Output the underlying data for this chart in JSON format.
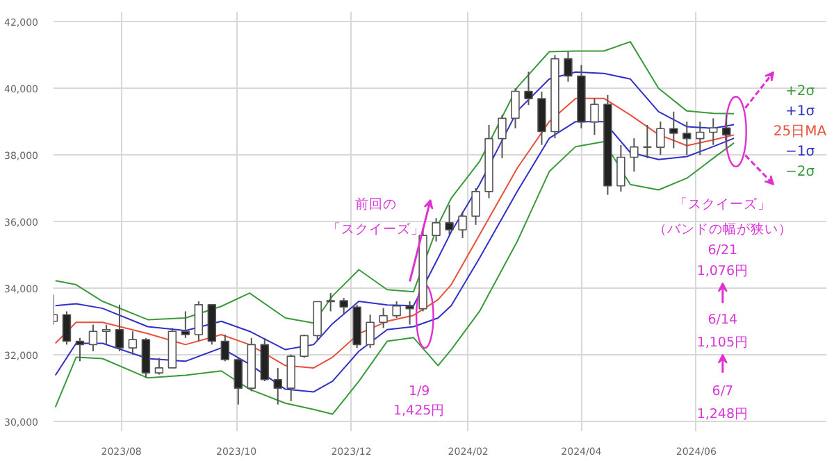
{
  "chart_data": {
    "type": "candlestick",
    "x": [
      "2023-06-26",
      "2023-07-03",
      "2023-07-10",
      "2023-07-17",
      "2023-07-24",
      "2023-07-31",
      "2023-08-07",
      "2023-08-14",
      "2023-08-21",
      "2023-08-28",
      "2023-09-04",
      "2023-09-11",
      "2023-09-18",
      "2023-09-25",
      "2023-10-02",
      "2023-10-09",
      "2023-10-16",
      "2023-10-23",
      "2023-10-30",
      "2023-11-06",
      "2023-11-13",
      "2023-11-20",
      "2023-11-27",
      "2023-12-04",
      "2023-12-11",
      "2023-12-18",
      "2023-12-25",
      "2024-01-01",
      "2024-01-08",
      "2024-01-15",
      "2024-01-22",
      "2024-01-29",
      "2024-02-05",
      "2024-02-12",
      "2024-02-19",
      "2024-02-26",
      "2024-03-04",
      "2024-03-11",
      "2024-03-18",
      "2024-03-25",
      "2024-04-01",
      "2024-04-08",
      "2024-04-15",
      "2024-04-22",
      "2024-04-29",
      "2024-05-06",
      "2024-05-13",
      "2024-05-20",
      "2024-05-27",
      "2024-06-03",
      "2024-06-10",
      "2024-06-17"
    ],
    "ohlc": [
      [
        33000,
        33800,
        32900,
        33200
      ],
      [
        33200,
        33300,
        32300,
        32400
      ],
      [
        32400,
        32500,
        31800,
        32300
      ],
      [
        32300,
        32900,
        32100,
        32700
      ],
      [
        32700,
        32900,
        32300,
        32750
      ],
      [
        32750,
        33500,
        32100,
        32200
      ],
      [
        32200,
        32700,
        32000,
        32450
      ],
      [
        32450,
        32500,
        31300,
        31450
      ],
      [
        31450,
        31900,
        31400,
        31600
      ],
      [
        31600,
        32800,
        31600,
        32700
      ],
      [
        32700,
        33300,
        32500,
        32600
      ],
      [
        32600,
        33600,
        32400,
        33500
      ],
      [
        33500,
        33500,
        32300,
        32400
      ],
      [
        32400,
        32600,
        31800,
        31850
      ],
      [
        31850,
        31900,
        30500,
        30990
      ],
      [
        30990,
        32500,
        30900,
        32300
      ],
      [
        32300,
        32500,
        31200,
        31250
      ],
      [
        31250,
        31600,
        30500,
        30990
      ],
      [
        30990,
        32000,
        30600,
        31950
      ],
      [
        31950,
        32600,
        31900,
        32570
      ],
      [
        32570,
        33600,
        32400,
        33590
      ],
      [
        33590,
        33850,
        33300,
        33620
      ],
      [
        33620,
        33700,
        33200,
        33430
      ],
      [
        33430,
        33500,
        32200,
        32300
      ],
      [
        32300,
        33200,
        32200,
        32970
      ],
      [
        32970,
        33400,
        32800,
        33170
      ],
      [
        33170,
        33600,
        33100,
        33460
      ],
      [
        33460,
        33600,
        32900,
        33380
      ],
      [
        33380,
        35800,
        33300,
        35580
      ],
      [
        35580,
        36100,
        35400,
        35960
      ],
      [
        35960,
        36500,
        35600,
        35750
      ],
      [
        35750,
        36300,
        35500,
        36160
      ],
      [
        36160,
        37000,
        35900,
        36900
      ],
      [
        36900,
        38900,
        36700,
        38490
      ],
      [
        38490,
        39200,
        37900,
        39100
      ],
      [
        39100,
        40000,
        38800,
        39910
      ],
      [
        39910,
        40500,
        39500,
        39690
      ],
      [
        39690,
        39900,
        38300,
        38700
      ],
      [
        38700,
        41000,
        38500,
        40890
      ],
      [
        40890,
        41100,
        40200,
        40370
      ],
      [
        40370,
        40700,
        38800,
        38990
      ],
      [
        38990,
        39700,
        38600,
        39520
      ],
      [
        39520,
        39800,
        36800,
        37070
      ],
      [
        37070,
        38300,
        36900,
        37930
      ],
      [
        37930,
        38500,
        37500,
        38240
      ],
      [
        38240,
        38900,
        37900,
        38230
      ],
      [
        38230,
        39000,
        38000,
        38790
      ],
      [
        38790,
        39300,
        38200,
        38650
      ],
      [
        38650,
        39000,
        38000,
        38490
      ],
      [
        38490,
        39000,
        38000,
        38680
      ],
      [
        38680,
        39100,
        38300,
        38810
      ],
      [
        38810,
        39200,
        38200,
        38600
      ]
    ],
    "series": [
      {
        "name": "+2σ",
        "type": "line",
        "color": "#3a9a3a",
        "x": [
          "2023-06-27",
          "2023-07-08",
          "2023-07-22",
          "2023-08-15",
          "2023-09-04",
          "2023-09-23",
          "2023-10-08",
          "2023-10-27",
          "2023-11-11",
          "2023-11-21",
          "2023-12-05",
          "2023-12-20",
          "2024-01-03",
          "2024-01-16",
          "2024-01-23",
          "2024-02-07",
          "2024-02-27",
          "2024-03-15",
          "2024-03-29",
          "2024-04-13",
          "2024-04-27",
          "2024-05-12",
          "2024-05-27",
          "2024-06-10",
          "2024-06-21"
        ],
        "values": [
          34220,
          34100,
          33600,
          33050,
          33100,
          33450,
          33850,
          33100,
          32950,
          33760,
          34550,
          33950,
          33890,
          35900,
          36700,
          37800,
          40030,
          41100,
          41120,
          41120,
          41400,
          40000,
          39320,
          39250,
          39240
        ]
      },
      {
        "name": "+1σ",
        "type": "line",
        "color": "#3030c8",
        "x": [
          "2023-06-27",
          "2023-07-08",
          "2023-07-22",
          "2023-08-15",
          "2023-09-04",
          "2023-09-23",
          "2023-10-08",
          "2023-10-27",
          "2023-11-11",
          "2023-11-21",
          "2023-12-05",
          "2023-12-20",
          "2024-01-03",
          "2024-01-16",
          "2024-01-23",
          "2024-02-07",
          "2024-02-27",
          "2024-03-15",
          "2024-03-29",
          "2024-04-13",
          "2024-04-27",
          "2024-05-12",
          "2024-05-27",
          "2024-06-10",
          "2024-06-21"
        ],
        "values": [
          33470,
          33530,
          33390,
          32840,
          32720,
          33000,
          32700,
          32150,
          32300,
          32930,
          33600,
          33490,
          33470,
          34900,
          35690,
          37110,
          39320,
          40280,
          40490,
          40450,
          40280,
          39300,
          38850,
          38800,
          38910
        ]
      },
      {
        "name": "25日MA",
        "type": "line",
        "color": "#e8503a",
        "x": [
          "2023-06-27",
          "2023-07-08",
          "2023-07-22",
          "2023-08-15",
          "2023-09-04",
          "2023-09-23",
          "2023-10-08",
          "2023-10-27",
          "2023-11-11",
          "2023-11-21",
          "2023-12-05",
          "2023-12-20",
          "2024-01-03",
          "2024-01-16",
          "2024-01-23",
          "2024-02-07",
          "2024-02-27",
          "2024-03-15",
          "2024-03-29",
          "2024-04-13",
          "2024-04-27",
          "2024-05-12",
          "2024-05-27",
          "2024-06-10",
          "2024-06-21"
        ],
        "values": [
          32340,
          32970,
          32970,
          32630,
          32300,
          32600,
          32300,
          31670,
          31600,
          31920,
          32630,
          33000,
          33180,
          33650,
          34100,
          35600,
          37600,
          39000,
          39700,
          39700,
          39200,
          38610,
          38280,
          38450,
          38600
        ]
      },
      {
        "name": "−1σ",
        "type": "line",
        "color": "#3030c8",
        "x": [
          "2023-06-27",
          "2023-07-08",
          "2023-07-22",
          "2023-08-15",
          "2023-09-04",
          "2023-09-23",
          "2023-10-08",
          "2023-10-27",
          "2023-11-11",
          "2023-11-21",
          "2023-12-05",
          "2023-12-20",
          "2024-01-03",
          "2024-01-16",
          "2024-01-23",
          "2024-02-07",
          "2024-02-27",
          "2024-03-15",
          "2024-03-29",
          "2024-04-13",
          "2024-04-27",
          "2024-05-12",
          "2024-05-27",
          "2024-06-10",
          "2024-06-21"
        ],
        "values": [
          31380,
          32340,
          32340,
          31880,
          31800,
          32200,
          31710,
          30960,
          30880,
          31200,
          32100,
          32750,
          32840,
          33100,
          33470,
          34900,
          36900,
          38500,
          39000,
          39000,
          38070,
          37860,
          37950,
          38250,
          38500
        ]
      },
      {
        "name": "−2σ",
        "type": "line",
        "color": "#3a9a3a",
        "x": [
          "2023-06-27",
          "2023-07-08",
          "2023-07-22",
          "2023-08-15",
          "2023-09-04",
          "2023-09-23",
          "2023-10-08",
          "2023-10-27",
          "2023-11-11",
          "2023-11-21",
          "2023-12-05",
          "2023-12-20",
          "2024-01-03",
          "2024-01-16",
          "2024-01-23",
          "2024-02-07",
          "2024-02-27",
          "2024-03-15",
          "2024-03-29",
          "2024-04-13",
          "2024-04-27",
          "2024-05-12",
          "2024-05-27",
          "2024-06-10",
          "2024-06-21"
        ],
        "values": [
          30420,
          31920,
          31880,
          31300,
          31380,
          31510,
          30960,
          30540,
          30350,
          30210,
          31200,
          32400,
          32510,
          31670,
          32150,
          33300,
          35400,
          37500,
          38250,
          38400,
          37110,
          36950,
          37300,
          37900,
          38360
        ]
      }
    ],
    "xlim": [
      "2023-06-26",
      "2024-08-09"
    ],
    "xticks": [
      {
        "value": "2023-08",
        "label": "2023/08"
      },
      {
        "value": "2023-10",
        "label": "2023/10"
      },
      {
        "value": "2023-12",
        "label": "2023/12"
      },
      {
        "value": "2024-02",
        "label": "2024/02"
      },
      {
        "value": "2024-04",
        "label": "2024/04"
      },
      {
        "value": "2024-06",
        "label": "2024/06"
      }
    ],
    "ylim": [
      29700,
      42300
    ],
    "yticks": [
      {
        "value": 30000,
        "label": "30,000"
      },
      {
        "value": 32000,
        "label": "32,000"
      },
      {
        "value": 34000,
        "label": "34,000"
      },
      {
        "value": 36000,
        "label": "36,000"
      },
      {
        "value": 38000,
        "label": "38,000"
      },
      {
        "value": 40000,
        "label": "40,000"
      },
      {
        "value": 42000,
        "label": "42,000"
      }
    ],
    "grid": true,
    "annotations": [
      "前回の",
      "「スクイーズ」",
      "1/9",
      "1,425円",
      "「スクイーズ」",
      "（バンドの幅が狭い）",
      "6/21",
      "1,076円",
      "6/14",
      "1,105円",
      "6/7",
      "1,248円"
    ]
  }
}
